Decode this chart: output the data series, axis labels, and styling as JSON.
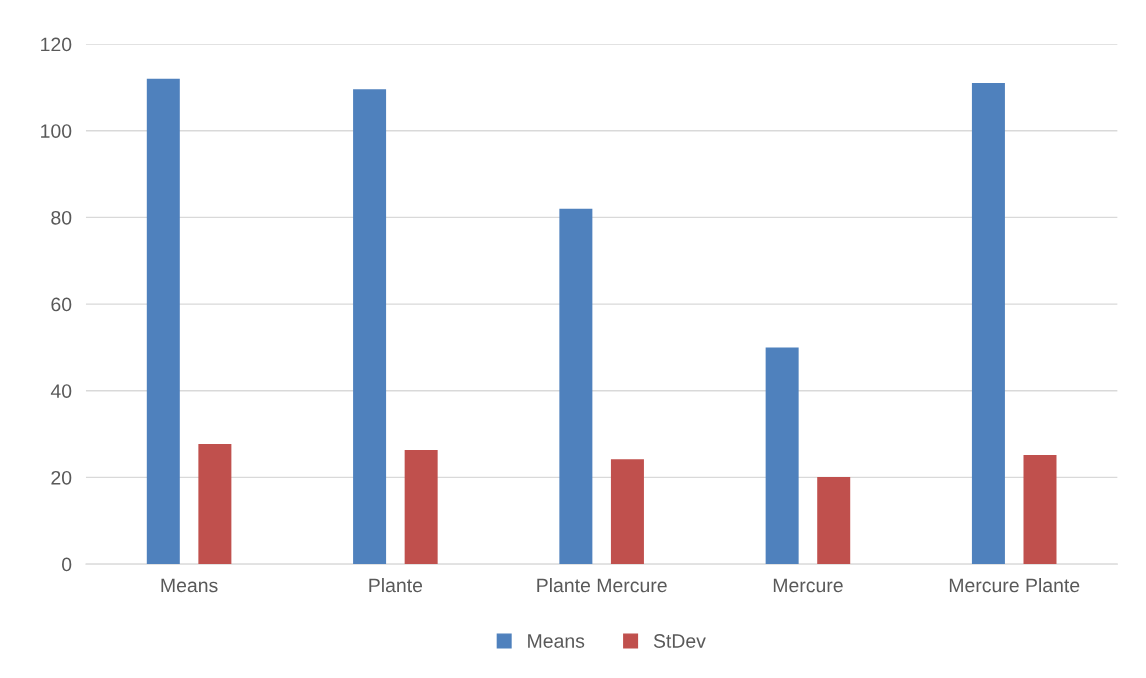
{
  "chart_data": {
    "type": "bar",
    "categories": [
      "Means",
      "Plante",
      "Plante Mercure",
      "Mercure",
      "Mercure Plante"
    ],
    "series": [
      {
        "name": "Means",
        "color": "#4f81bd",
        "values": [
          112,
          109.6,
          82,
          50,
          111
        ]
      },
      {
        "name": "StDev",
        "color": "#c0504d",
        "values": [
          27.7,
          26.3,
          24.2,
          20.1,
          25.2
        ]
      }
    ],
    "ylim": [
      0,
      120
    ],
    "yticks": [
      0,
      20,
      40,
      60,
      80,
      100,
      120
    ],
    "grid": "y",
    "legend": "bottom"
  }
}
